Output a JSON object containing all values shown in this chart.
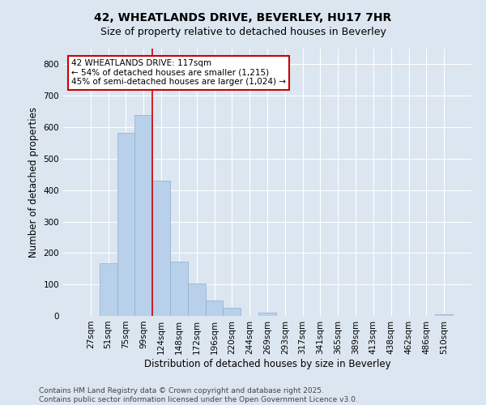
{
  "title_line1": "42, WHEATLANDS DRIVE, BEVERLEY, HU17 7HR",
  "title_line2": "Size of property relative to detached houses in Beverley",
  "xlabel": "Distribution of detached houses by size in Beverley",
  "ylabel": "Number of detached properties",
  "bar_labels": [
    "27sqm",
    "51sqm",
    "75sqm",
    "99sqm",
    "124sqm",
    "148sqm",
    "172sqm",
    "196sqm",
    "220sqm",
    "244sqm",
    "269sqm",
    "293sqm",
    "317sqm",
    "341sqm",
    "365sqm",
    "389sqm",
    "413sqm",
    "438sqm",
    "462sqm",
    "486sqm",
    "510sqm"
  ],
  "bar_values": [
    0,
    168,
    583,
    638,
    430,
    172,
    103,
    50,
    25,
    0,
    10,
    0,
    0,
    0,
    0,
    0,
    0,
    0,
    0,
    0,
    5
  ],
  "bar_color": "#b8d0ea",
  "bar_edge_color": "#8ab0d0",
  "background_color": "#dce6f0",
  "grid_color": "#ffffff",
  "annotation_text_line1": "42 WHEATLANDS DRIVE: 117sqm",
  "annotation_text_line2": "← 54% of detached houses are smaller (1,215)",
  "annotation_text_line3": "45% of semi-detached houses are larger (1,024) →",
  "annotation_box_color": "#ffffff",
  "annotation_box_edge_color": "#cc0000",
  "vline_color": "#cc0000",
  "vline_x_index": 3.5,
  "ylim": [
    0,
    850
  ],
  "yticks": [
    0,
    100,
    200,
    300,
    400,
    500,
    600,
    700,
    800
  ],
  "footer_line1": "Contains HM Land Registry data © Crown copyright and database right 2025.",
  "footer_line2": "Contains public sector information licensed under the Open Government Licence v3.0.",
  "title_fontsize": 10,
  "subtitle_fontsize": 9,
  "axis_label_fontsize": 8.5,
  "tick_fontsize": 7.5,
  "annotation_fontsize": 7.5,
  "footer_fontsize": 6.5
}
